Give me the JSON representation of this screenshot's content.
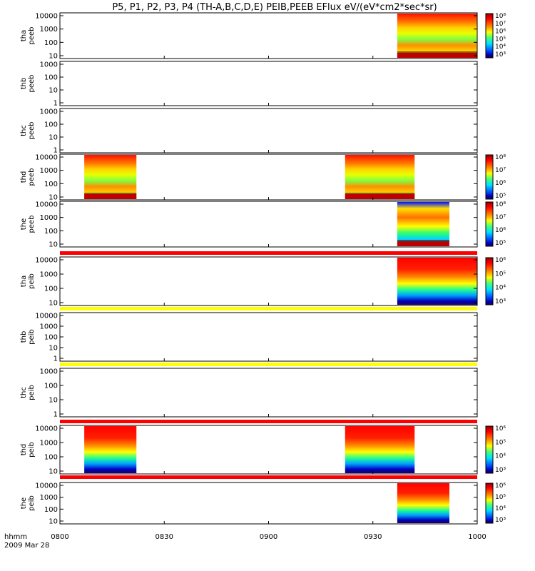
{
  "title": "P5, P1, P2, P3, P4 (TH-A,B,C,D,E) PEIB,PEEB EFlux eV/(eV*cm2*sec*sr)",
  "chart_data": {
    "type": "heatmap",
    "title": "P5, P1, P2, P3, P4 (TH-A,B,C,D,E) PEIB,PEEB EFlux eV/(eV*cm2*sec*sr)",
    "x_label": "hhmm",
    "date_label": "2009 Mar 28",
    "x_ticks": [
      "0800",
      "0830",
      "0900",
      "0930",
      "1000"
    ],
    "x_range": [
      "0800",
      "1000"
    ],
    "y_scale": "log",
    "colorbar_scale": "log",
    "panels": [
      {
        "name": "panel-tha-peeb",
        "probe": "tha",
        "instrument": "peeb",
        "y_ticks": [
          "10000",
          "1000",
          "100",
          "10"
        ],
        "colorbar": [
          "10⁸",
          "10⁷",
          "10⁶",
          "10⁵",
          "10⁴",
          "10³"
        ],
        "data_intervals": [
          [
            "0937",
            "1000"
          ]
        ],
        "baseline_below": true
      },
      {
        "name": "panel-thb-peeb",
        "probe": "thb",
        "instrument": "peeb",
        "y_ticks": [
          "1000",
          "100",
          "10",
          "1"
        ],
        "colorbar": [],
        "data_intervals": []
      },
      {
        "name": "panel-thc-peeb",
        "probe": "thc",
        "instrument": "peeb",
        "y_ticks": [
          "1000",
          "100",
          "10",
          "1"
        ],
        "colorbar": [],
        "data_intervals": []
      },
      {
        "name": "panel-thd-peeb",
        "probe": "thd",
        "instrument": "peeb",
        "y_ticks": [
          "10000",
          "1000",
          "100",
          "10"
        ],
        "colorbar": [
          "10⁸",
          "10⁷",
          "10⁶",
          "10⁵"
        ],
        "data_intervals": [
          [
            "0807",
            "0822"
          ],
          [
            "0922",
            "0942"
          ]
        ],
        "baseline_below": true
      },
      {
        "name": "panel-the-peeb",
        "probe": "the",
        "instrument": "peeb",
        "y_ticks": [
          "10000",
          "1000",
          "100",
          "10"
        ],
        "colorbar": [
          "10⁸",
          "10⁷",
          "10⁶",
          "10⁵"
        ],
        "data_intervals": [
          [
            "0937",
            "0952"
          ]
        ],
        "baseline_below": true
      },
      {
        "name": "panel-tha-peib",
        "probe": "tha",
        "instrument": "peib",
        "y_ticks": [
          "10000",
          "1000",
          "100",
          "10"
        ],
        "colorbar": [
          "10⁶",
          "10⁵",
          "10⁴",
          "10³"
        ],
        "data_intervals": [
          [
            "0937",
            "1000"
          ]
        ],
        "bar_above": "red"
      },
      {
        "name": "panel-thb-peib",
        "probe": "thb",
        "instrument": "peib",
        "y_ticks": [
          "10000",
          "1000",
          "100",
          "10",
          "1"
        ],
        "colorbar": [],
        "data_intervals": [],
        "bar_above": "yellow"
      },
      {
        "name": "panel-thc-peib",
        "probe": "thc",
        "instrument": "peib",
        "y_ticks": [
          "1000",
          "100",
          "10",
          "1"
        ],
        "colorbar": [],
        "data_intervals": [],
        "bar_above": "yellow"
      },
      {
        "name": "panel-thd-peib",
        "probe": "thd",
        "instrument": "peib",
        "y_ticks": [
          "10000",
          "1000",
          "100",
          "10"
        ],
        "colorbar": [
          "10⁶",
          "10⁵",
          "10⁴",
          "10³"
        ],
        "data_intervals": [
          [
            "0807",
            "0822"
          ],
          [
            "0922",
            "0942"
          ]
        ],
        "bar_above": "red"
      },
      {
        "name": "panel-the-peib",
        "probe": "the",
        "instrument": "peib",
        "y_ticks": [
          "10000",
          "1000",
          "100",
          "10"
        ],
        "colorbar": [
          "10⁶",
          "10⁵",
          "10⁴",
          "10³"
        ],
        "data_intervals": [
          [
            "0937",
            "0952"
          ]
        ],
        "bar_above": "red"
      }
    ]
  },
  "colors": {
    "status_red": "#ff0000",
    "status_yellow": "#ffff00",
    "spectrum": [
      "#800000",
      "#ff0000",
      "#ff8000",
      "#ffff00",
      "#80ff00",
      "#00ff80",
      "#00ffff",
      "#0080ff",
      "#0000ff",
      "#400080"
    ]
  }
}
